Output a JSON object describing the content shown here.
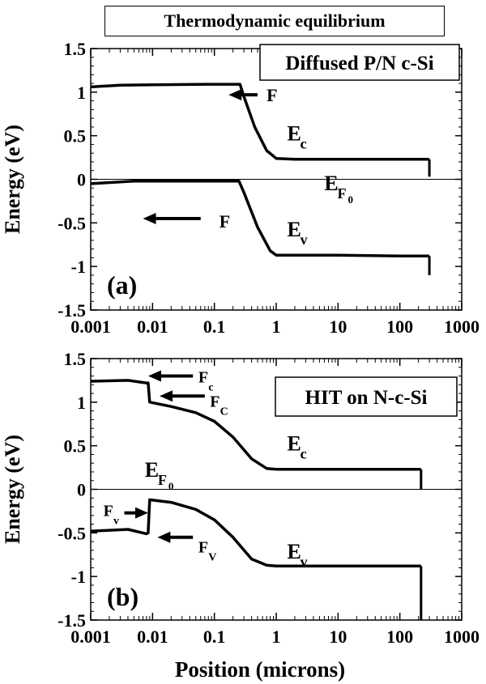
{
  "header": {
    "title": "Thermodynamic equilibrium"
  },
  "chart_data": [
    {
      "type": "line",
      "panel_label": "(a)",
      "legend_box": "Diffused P/N c-Si",
      "xlabel": "",
      "ylabel": "Energy (eV)",
      "xscale": "log",
      "xlim": [
        0.001,
        1000
      ],
      "ylim": [
        -1.5,
        1.5
      ],
      "xticks": [
        "0.001",
        "0.01",
        "0.1",
        "1",
        "10",
        "100",
        "1000"
      ],
      "yticks": [
        "1.5",
        "1",
        "0.5",
        "0",
        "-0.5",
        "-1",
        "-1.5"
      ],
      "series": [
        {
          "name": "E_c",
          "points": [
            [
              0.001,
              1.06
            ],
            [
              0.003,
              1.08
            ],
            [
              0.01,
              1.085
            ],
            [
              0.1,
              1.09
            ],
            [
              0.26,
              1.09
            ],
            [
              0.3,
              0.95
            ],
            [
              0.45,
              0.6
            ],
            [
              0.7,
              0.33
            ],
            [
              1.0,
              0.24
            ],
            [
              2,
              0.23
            ],
            [
              10,
              0.23
            ],
            [
              100,
              0.23
            ],
            [
              300,
              0.23
            ]
          ],
          "end_tick": [
            300,
            0.23,
            0.03
          ]
        },
        {
          "name": "E_v",
          "points": [
            [
              0.001,
              -0.05
            ],
            [
              0.005,
              -0.02
            ],
            [
              0.1,
              -0.02
            ],
            [
              0.25,
              -0.02
            ],
            [
              0.3,
              -0.15
            ],
            [
              0.5,
              -0.55
            ],
            [
              0.8,
              -0.82
            ],
            [
              1.0,
              -0.87
            ],
            [
              10,
              -0.87
            ],
            [
              100,
              -0.88
            ],
            [
              300,
              -0.88
            ]
          ],
          "end_tick": [
            300,
            -0.88,
            -1.1
          ]
        }
      ],
      "zero_line": 0,
      "annotations": {
        "Ec": {
          "main": "E",
          "sub": "c",
          "at": [
            1.5,
            0.52
          ]
        },
        "Ev": {
          "main": "E",
          "sub": "v",
          "at": [
            1.5,
            -0.58
          ]
        },
        "EF": {
          "main": "E",
          "sub": "F",
          "subsub": "0",
          "at": [
            6,
            -0.05
          ]
        },
        "F1": {
          "text": "F",
          "at": [
            0.7,
            0.97
          ]
        },
        "F2": {
          "text": "F",
          "at": [
            0.12,
            -0.48
          ]
        }
      },
      "arrows": [
        {
          "from": [
            0.5,
            0.97
          ],
          "to": [
            0.17,
            0.97
          ]
        },
        {
          "from": [
            0.06,
            -0.45
          ],
          "to": [
            0.007,
            -0.45
          ]
        }
      ]
    },
    {
      "type": "line",
      "panel_label": "(b)",
      "legend_box": "HIT on N-c-Si",
      "xlabel": "Position (microns)",
      "ylabel": "Energy (eV)",
      "xscale": "log",
      "xlim": [
        0.001,
        1000
      ],
      "ylim": [
        -1.5,
        1.5
      ],
      "xticks": [
        "0.001",
        "0.01",
        "0.1",
        "1",
        "10",
        "100",
        "1000"
      ],
      "yticks": [
        "1.5",
        "1",
        "0.5",
        "0",
        "-0.5",
        "-1",
        "-1.5"
      ],
      "series": [
        {
          "name": "E_c",
          "points": [
            [
              0.001,
              1.24
            ],
            [
              0.004,
              1.25
            ],
            [
              0.008,
              1.22
            ],
            [
              0.0085,
              1.22
            ],
            [
              0.009,
              1.0
            ],
            [
              0.02,
              0.95
            ],
            [
              0.05,
              0.88
            ],
            [
              0.1,
              0.78
            ],
            [
              0.2,
              0.6
            ],
            [
              0.4,
              0.35
            ],
            [
              0.7,
              0.24
            ],
            [
              1,
              0.23
            ],
            [
              10,
              0.23
            ],
            [
              100,
              0.23
            ],
            [
              220,
              0.23
            ]
          ],
          "end_tick": [
            220,
            0.23,
            0.0
          ]
        },
        {
          "name": "E_v",
          "points": [
            [
              0.001,
              -0.48
            ],
            [
              0.004,
              -0.46
            ],
            [
              0.008,
              -0.51
            ],
            [
              0.0085,
              -0.5
            ],
            [
              0.009,
              -0.12
            ],
            [
              0.02,
              -0.15
            ],
            [
              0.05,
              -0.23
            ],
            [
              0.1,
              -0.35
            ],
            [
              0.2,
              -0.55
            ],
            [
              0.4,
              -0.8
            ],
            [
              0.7,
              -0.87
            ],
            [
              1,
              -0.88
            ],
            [
              10,
              -0.88
            ],
            [
              100,
              -0.88
            ],
            [
              220,
              -0.88
            ]
          ],
          "end_tick": [
            220,
            -0.88,
            -1.5
          ]
        }
      ],
      "zero_line": 0,
      "annotations": {
        "Ec": {
          "main": "E",
          "sub": "c",
          "at": [
            1.5,
            0.52
          ]
        },
        "Ev": {
          "main": "E",
          "sub": "v",
          "at": [
            1.5,
            -0.72
          ]
        },
        "EF": {
          "main": "E",
          "sub": "F",
          "subsub": "0",
          "at": [
            0.0075,
            0.22
          ]
        },
        "Fc1": {
          "main": "F",
          "sub": "c",
          "at": [
            0.055,
            1.3
          ]
        },
        "Fc2": {
          "main": "F",
          "sub": "C",
          "at": [
            0.085,
            1.02
          ]
        },
        "Fv1": {
          "main": "F",
          "sub": "v",
          "at": [
            0.0016,
            -0.23
          ]
        },
        "Fv2": {
          "main": "F",
          "sub": "V",
          "at": [
            0.055,
            -0.65
          ]
        }
      },
      "arrows": [
        {
          "from": [
            0.045,
            1.3
          ],
          "to": [
            0.0085,
            1.3
          ]
        },
        {
          "from": [
            0.07,
            1.07
          ],
          "to": [
            0.013,
            1.07
          ]
        },
        {
          "from": [
            0.0035,
            -0.27
          ],
          "to": [
            0.0085,
            -0.27
          ]
        },
        {
          "from": [
            0.045,
            -0.55
          ],
          "to": [
            0.012,
            -0.55
          ]
        }
      ]
    }
  ]
}
